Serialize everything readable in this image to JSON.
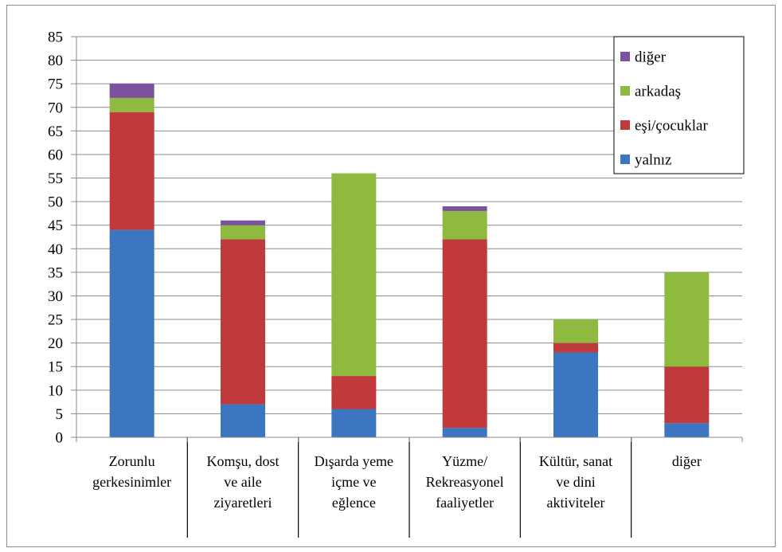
{
  "chart_data": {
    "type": "bar",
    "stacked": true,
    "categories": [
      [
        "Zorunlu",
        "gerkesinimler"
      ],
      [
        "Komşu, dost",
        "ve aile",
        "ziyaretleri"
      ],
      [
        "Dışarda yeme",
        "içme ve",
        "eğlence"
      ],
      [
        "Yüzme/",
        "Rekreasyonel",
        "faaliyetler"
      ],
      [
        "Kültür, sanat",
        "ve dini",
        "aktiviteler"
      ],
      [
        "diğer"
      ]
    ],
    "series": [
      {
        "name": "yalnız",
        "color": "#3d76c0",
        "values": [
          44,
          7,
          6,
          2,
          18,
          3
        ]
      },
      {
        "name": "eşi/çocuklar",
        "color": "#c0393b",
        "values": [
          25,
          35,
          7,
          40,
          2,
          12
        ]
      },
      {
        "name": "arkadaş",
        "color": "#8dba3f",
        "values": [
          3,
          3,
          43,
          6,
          5,
          20
        ]
      },
      {
        "name": "diğer",
        "color": "#7a52a0",
        "values": [
          3,
          1,
          0,
          1,
          0,
          0
        ]
      }
    ],
    "ylim": [
      0,
      85
    ],
    "ytick_step": 5,
    "grid": true,
    "legend": "top-right"
  }
}
